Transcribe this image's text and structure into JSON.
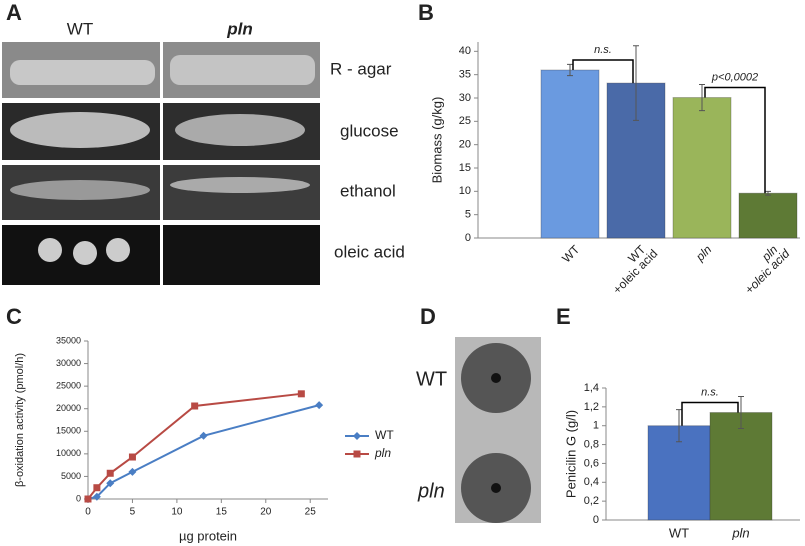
{
  "panels": {
    "a": {
      "letter": "A",
      "columns": [
        "WT",
        "pln"
      ],
      "rows": [
        "R - agar",
        "glucose",
        "ethanol",
        "oleic acid"
      ]
    },
    "d": {
      "letter": "D",
      "rows": [
        "WT",
        "pln"
      ]
    },
    "b_letter": "B",
    "c_letter": "C",
    "e_letter": "E"
  },
  "chart_data": [
    {
      "type": "bar",
      "ylabel": "Biomass (g/kg)",
      "categories": [
        [
          "WT"
        ],
        [
          "WT",
          "+oleic acid"
        ],
        [
          "pln"
        ],
        [
          "pln",
          "+oleic acid"
        ]
      ],
      "values": [
        36,
        33.2,
        30.1,
        9.6
      ],
      "errors": [
        1.2,
        8,
        2.8,
        0.4
      ],
      "colors": [
        "#6a9ae0",
        "#4a6aa8",
        "#9ab55a",
        "#5e7a35"
      ],
      "ylim": [
        0,
        42
      ],
      "yticks": [
        0,
        5,
        10,
        15,
        20,
        25,
        30,
        35,
        40
      ],
      "annotations": [
        "n.s.",
        "p<0,0002"
      ]
    },
    {
      "type": "line",
      "ylabel": "β-oxidation activity (pmol/h)",
      "xlabel": "µg protein",
      "series": [
        {
          "name": "WT",
          "color": "#4a7ec4",
          "x": [
            0,
            1,
            2.5,
            5,
            13,
            26
          ],
          "values": [
            0,
            500,
            3500,
            6000,
            14000,
            20800
          ]
        },
        {
          "name": "pln",
          "color": "#b84a44",
          "x": [
            0,
            1,
            2.5,
            5,
            12,
            24
          ],
          "values": [
            0,
            2500,
            5700,
            9300,
            20600,
            23300
          ]
        }
      ],
      "xlim": [
        0,
        27
      ],
      "xticks": [
        0,
        5,
        10,
        15,
        20,
        25
      ],
      "ylim": [
        0,
        35000
      ],
      "yticks": [
        0,
        5000,
        10000,
        15000,
        20000,
        25000,
        30000,
        35000
      ],
      "legend": "right"
    },
    {
      "type": "bar",
      "ylabel": "Penicilin G (g/l)",
      "categories": [
        [
          "WT"
        ],
        [
          "pln"
        ]
      ],
      "values": [
        1.0,
        1.14
      ],
      "errors": [
        0.17,
        0.17
      ],
      "colors": [
        "#4a72c0",
        "#5e7a35"
      ],
      "ylim": [
        0,
        1.4
      ],
      "yticks": [
        0,
        {
          "value": 0.2,
          "label": "0,2"
        },
        {
          "value": 0.4,
          "label": "0,4"
        },
        {
          "value": 0.6,
          "label": "0,6"
        },
        {
          "value": 0.8,
          "label": "0,8"
        },
        1,
        {
          "value": 1.2,
          "label": "1,2"
        },
        {
          "value": 1.4,
          "label": "1,4"
        }
      ],
      "annotations": [
        "n.s."
      ]
    }
  ]
}
